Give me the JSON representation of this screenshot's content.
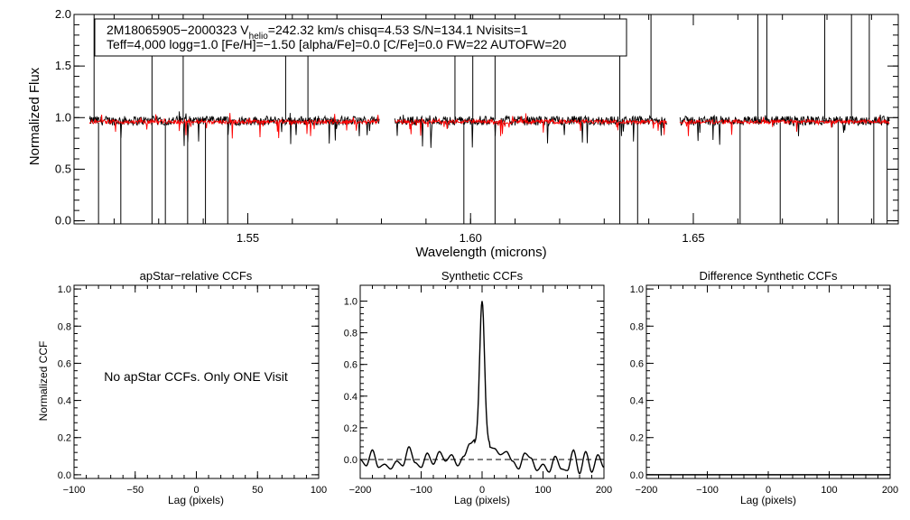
{
  "chart_data": [
    {
      "type": "line",
      "panel": "spectrum",
      "xlabel": "Wavelength (microns)",
      "ylabel": "Normalized Flux",
      "xlim": [
        1.511,
        1.696
      ],
      "ylim": [
        -0.03,
        2.0
      ],
      "x_ticks": [
        1.55,
        1.6,
        1.65
      ],
      "x_tick_labels": [
        "1.55",
        "1.60",
        "1.65"
      ],
      "y_ticks": [
        0.0,
        0.5,
        1.0,
        1.5,
        2.0
      ],
      "y_tick_labels": [
        "0.0",
        "0.5",
        "1.0",
        "1.5",
        "2.0"
      ],
      "info": {
        "line1_a": "2M18065905−2000323  V",
        "line1_sub": "helio",
        "line1_b": "=242.32 km/s  chisq=4.53  S/N=134.1  Nvisits=1",
        "line2": "Teff=4,000 logg=1.0 [Fe/H]=−1.50 [alpha/Fe]=0.0 [C/Fe]=0.0 FW=22 AUTOFW=20"
      },
      "chips": [
        [
          1.5145,
          1.5795
        ],
        [
          1.583,
          1.644
        ],
        [
          1.647,
          1.694
        ]
      ],
      "series": [
        {
          "name": "observed",
          "color": "#000000",
          "baseline": 0.97,
          "noise": 0.045
        },
        {
          "name": "model",
          "color": "#ff0000",
          "baseline": 0.96,
          "noise": 0.02
        }
      ],
      "spikes_up": [
        1.5155,
        1.5285,
        1.5355,
        1.5585,
        1.5635,
        1.5965,
        1.6005,
        1.6055,
        1.6335,
        1.6405,
        1.6645,
        1.6665,
        1.6795,
        1.6855,
        1.6895
      ],
      "spikes_down": [
        1.5165,
        1.5215,
        1.5285,
        1.5315,
        1.5365,
        1.5405,
        1.5455,
        1.5985,
        1.6055,
        1.6335,
        1.6375,
        1.6605,
        1.6695,
        1.6825,
        1.6905,
        1.6935
      ]
    },
    {
      "type": "line",
      "panel": "apStar-relative CCFs",
      "title": "apStar−relative CCFs",
      "xlabel": "Lag (pixels)",
      "ylabel": "Normalized CCF",
      "xlim": [
        -100,
        100
      ],
      "ylim": [
        -0.02,
        1.02
      ],
      "x_ticks": [
        -100,
        -50,
        0,
        50,
        100
      ],
      "x_tick_labels": [
        "−100",
        "−50",
        "0",
        "50",
        "100"
      ],
      "y_ticks": [
        0.0,
        0.2,
        0.4,
        0.6,
        0.8,
        1.0
      ],
      "y_tick_labels": [
        "0.0",
        "0.2",
        "0.4",
        "0.6",
        "0.8",
        "1.0"
      ],
      "message": "No apStar CCFs.  Only ONE Visit"
    },
    {
      "type": "line",
      "panel": "Synthetic CCFs",
      "title": "Synthetic CCFs",
      "xlabel": "Lag (pixels)",
      "xlim": [
        -200,
        200
      ],
      "ylim": [
        -0.12,
        1.1
      ],
      "x_ticks": [
        -200,
        -100,
        0,
        100,
        200
      ],
      "x_tick_labels": [
        "−200",
        "−100",
        "0",
        "100",
        "200"
      ],
      "y_ticks": [
        0.0,
        0.2,
        0.4,
        0.6,
        0.8,
        1.0
      ],
      "y_tick_labels": [
        "0.0",
        "0.2",
        "0.4",
        "0.6",
        "0.8",
        "1.0"
      ],
      "reference_line": 0.0,
      "peak": {
        "lag": 0,
        "value": 1.0,
        "width": 4
      },
      "series": [
        {
          "name": "CCF",
          "color": "#000000",
          "x": [
            -200,
            -190,
            -180,
            -170,
            -160,
            -150,
            -140,
            -130,
            -120,
            -110,
            -100,
            -90,
            -80,
            -70,
            -60,
            -50,
            -40,
            -30,
            -20,
            -10,
            0,
            10,
            20,
            30,
            40,
            50,
            60,
            70,
            80,
            90,
            100,
            110,
            120,
            130,
            140,
            150,
            160,
            170,
            180,
            190,
            200
          ],
          "y": [
            0.0,
            -0.04,
            0.06,
            -0.05,
            -0.03,
            -0.06,
            -0.01,
            -0.04,
            0.08,
            -0.02,
            -0.05,
            0.04,
            -0.03,
            0.05,
            -0.01,
            0.03,
            -0.04,
            0.02,
            0.1,
            0.13,
            1.0,
            0.08,
            0.07,
            0.03,
            0.05,
            -0.01,
            -0.06,
            0.04,
            0.01,
            -0.07,
            -0.03,
            -0.08,
            0.02,
            -0.06,
            -0.07,
            0.06,
            -0.09,
            0.05,
            -0.08,
            0.03,
            -0.05
          ]
        }
      ]
    },
    {
      "type": "line",
      "panel": "Difference Synthetic CCFs",
      "title": "Difference Synthetic CCFs",
      "xlabel": "Lag (pixels)",
      "xlim": [
        -200,
        200
      ],
      "ylim": [
        -0.02,
        1.02
      ],
      "x_ticks": [
        -200,
        -100,
        0,
        100,
        200
      ],
      "x_tick_labels": [
        "−200",
        "−100",
        "0",
        "100",
        "200"
      ],
      "y_ticks": [
        0.0,
        0.2,
        0.4,
        0.6,
        0.8,
        1.0
      ],
      "y_tick_labels": [
        "0.0",
        "0.2",
        "0.4",
        "0.6",
        "0.8",
        "1.0"
      ],
      "series": [
        {
          "name": "difference",
          "color": "#000000",
          "x": [
            -200,
            200
          ],
          "y": [
            0.0,
            0.0
          ]
        }
      ]
    }
  ]
}
